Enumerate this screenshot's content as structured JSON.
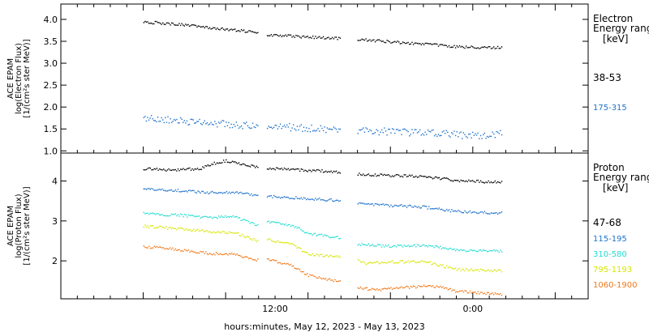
{
  "chart_data": [
    {
      "type": "scatter",
      "panel": "electron",
      "ylabel_lines": [
        "ACE EPAM",
        "log(Electron Flux)",
        "[1/(cm²s ster MeV)]"
      ],
      "yticks": [
        "1.0",
        "1.5",
        "2.0",
        "2.5",
        "3.0",
        "3.5",
        "4.0"
      ],
      "ylim": [
        0.95,
        4.35
      ],
      "legend_title_lines": [
        "Electron",
        "Energy ranges",
        "[keV]"
      ],
      "series": [
        {
          "name": "38-53",
          "color": "#000000",
          "segments": [
            [
              [
                0.0,
                3.95
              ],
              [
                1.0,
                3.93
              ],
              [
                2.0,
                3.9
              ],
              [
                3.0,
                3.86
              ],
              [
                4.0,
                3.82
              ],
              [
                5.0,
                3.78
              ],
              [
                6.0,
                3.75
              ],
              [
                7.0,
                3.72
              ]
            ],
            [
              [
                7.5,
                3.66
              ],
              [
                9.0,
                3.63
              ],
              [
                10.5,
                3.6
              ],
              [
                12.0,
                3.57
              ]
            ],
            [
              [
                13.0,
                3.56
              ],
              [
                15.0,
                3.5
              ],
              [
                17.0,
                3.45
              ],
              [
                19.0,
                3.39
              ],
              [
                21.0,
                3.36
              ],
              [
                21.8,
                3.38
              ]
            ]
          ]
        },
        {
          "name": "175-315",
          "color": "#1f73cc",
          "segments": [
            [
              [
                0.0,
                1.78
              ],
              [
                1.0,
                1.75
              ],
              [
                2.0,
                1.7
              ],
              [
                3.0,
                1.67
              ],
              [
                4.0,
                1.65
              ],
              [
                5.0,
                1.62
              ],
              [
                6.0,
                1.6
              ],
              [
                7.0,
                1.58
              ]
            ],
            [
              [
                7.5,
                1.58
              ],
              [
                9.0,
                1.55
              ],
              [
                10.5,
                1.52
              ],
              [
                12.0,
                1.5
              ]
            ],
            [
              [
                13.0,
                1.48
              ],
              [
                15.0,
                1.45
              ],
              [
                17.0,
                1.42
              ],
              [
                19.0,
                1.38
              ],
              [
                21.0,
                1.35
              ],
              [
                21.8,
                1.42
              ]
            ]
          ]
        }
      ]
    },
    {
      "type": "scatter",
      "panel": "proton",
      "ylabel_lines": [
        "ACE EPAM",
        "log(Proton Flux)",
        "[1/(cm²s ster MeV)]"
      ],
      "yticks": [
        "2",
        "3",
        "4"
      ],
      "ylim": [
        1.05,
        4.7
      ],
      "legend_title_lines": [
        "Proton",
        "Energy ranges",
        "[keV]"
      ],
      "series": [
        {
          "name": "47-68",
          "color": "#000000",
          "segments": [
            [
              [
                0.0,
                4.32
              ],
              [
                2.0,
                4.28
              ],
              [
                3.5,
                4.33
              ],
              [
                4.2,
                4.45
              ],
              [
                5.0,
                4.52
              ],
              [
                6.0,
                4.43
              ],
              [
                7.0,
                4.35
              ]
            ],
            [
              [
                7.5,
                4.32
              ],
              [
                9.0,
                4.3
              ],
              [
                10.5,
                4.27
              ],
              [
                12.0,
                4.24
              ]
            ],
            [
              [
                13.0,
                4.18
              ],
              [
                15.0,
                4.15
              ],
              [
                17.0,
                4.12
              ],
              [
                18.0,
                4.08
              ],
              [
                19.0,
                4.02
              ],
              [
                21.0,
                3.99
              ],
              [
                21.8,
                3.98
              ]
            ]
          ]
        },
        {
          "name": "115-195",
          "color": "#1f73cc",
          "segments": [
            [
              [
                0.0,
                3.82
              ],
              [
                2.0,
                3.78
              ],
              [
                4.0,
                3.72
              ],
              [
                5.5,
                3.74
              ],
              [
                7.0,
                3.64
              ]
            ],
            [
              [
                7.5,
                3.63
              ],
              [
                9.0,
                3.6
              ],
              [
                10.5,
                3.56
              ],
              [
                12.0,
                3.52
              ]
            ],
            [
              [
                13.0,
                3.45
              ],
              [
                15.0,
                3.4
              ],
              [
                17.0,
                3.36
              ],
              [
                18.0,
                3.3
              ],
              [
                19.0,
                3.25
              ],
              [
                21.0,
                3.22
              ],
              [
                21.8,
                3.21
              ]
            ]
          ]
        },
        {
          "name": "310-580",
          "color": "#22dcd0",
          "segments": [
            [
              [
                0.0,
                3.2
              ],
              [
                2.0,
                3.16
              ],
              [
                4.0,
                3.1
              ],
              [
                5.5,
                3.12
              ],
              [
                7.0,
                2.88
              ]
            ],
            [
              [
                7.5,
                3.0
              ],
              [
                9.0,
                2.9
              ],
              [
                10.0,
                2.7
              ],
              [
                12.0,
                2.58
              ]
            ],
            [
              [
                13.0,
                2.42
              ],
              [
                15.0,
                2.38
              ],
              [
                17.0,
                2.4
              ],
              [
                18.0,
                2.35
              ],
              [
                19.0,
                2.28
              ],
              [
                21.0,
                2.26
              ],
              [
                21.8,
                2.26
              ]
            ]
          ]
        },
        {
          "name": "795-1193",
          "color": "#d6e600",
          "segments": [
            [
              [
                0.0,
                2.88
              ],
              [
                2.0,
                2.82
              ],
              [
                4.0,
                2.75
              ],
              [
                5.5,
                2.72
              ],
              [
                7.0,
                2.5
              ]
            ],
            [
              [
                7.5,
                2.55
              ],
              [
                9.0,
                2.42
              ],
              [
                10.0,
                2.18
              ],
              [
                12.0,
                2.1
              ]
            ],
            [
              [
                13.0,
                2.05
              ],
              [
                13.5,
                1.95
              ],
              [
                15.0,
                1.98
              ],
              [
                17.0,
                2.0
              ],
              [
                18.0,
                1.9
              ],
              [
                19.0,
                1.8
              ],
              [
                21.0,
                1.77
              ],
              [
                21.8,
                1.76
              ]
            ]
          ]
        },
        {
          "name": "1060-1900",
          "color": "#f07818",
          "segments": [
            [
              [
                0.0,
                2.38
              ],
              [
                2.0,
                2.3
              ],
              [
                4.0,
                2.2
              ],
              [
                5.5,
                2.18
              ],
              [
                7.0,
                2.02
              ]
            ],
            [
              [
                7.5,
                2.05
              ],
              [
                9.0,
                1.9
              ],
              [
                10.0,
                1.65
              ],
              [
                12.0,
                1.48
              ]
            ],
            [
              [
                13.0,
                1.35
              ],
              [
                14.0,
                1.28
              ],
              [
                15.0,
                1.32
              ],
              [
                17.0,
                1.38
              ],
              [
                18.0,
                1.36
              ],
              [
                19.0,
                1.25
              ],
              [
                21.0,
                1.2
              ],
              [
                21.8,
                1.18
              ]
            ]
          ]
        }
      ]
    }
  ],
  "x_axis": {
    "xlim": [
      -5.0,
      27.0
    ],
    "ticks_major": [
      -5,
      0,
      5,
      10,
      15,
      20,
      25
    ],
    "ticks_minor_step": 1,
    "tick_labels": [
      {
        "x": 8.0,
        "label": "12:00"
      },
      {
        "x": 20.0,
        "label": "0:00"
      }
    ],
    "xlabel": "hours:minutes, May 12, 2023 - May 13, 2023"
  }
}
